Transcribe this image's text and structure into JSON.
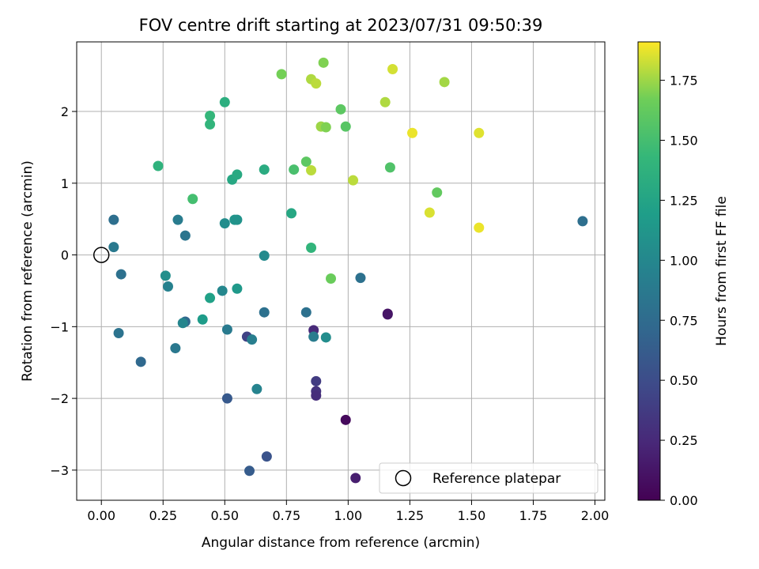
{
  "chart_data": {
    "type": "scatter",
    "title": "FOV centre drift starting at 2023/07/31 09:50:39",
    "xlabel": "Angular distance from reference (arcmin)",
    "ylabel": "Rotation from reference (arcmin)",
    "xlim": [
      -0.1,
      2.04
    ],
    "ylim": [
      -3.42,
      2.97
    ],
    "x_ticks": [
      0.0,
      0.25,
      0.5,
      0.75,
      1.0,
      1.25,
      1.5,
      1.75,
      2.0
    ],
    "x_tick_labels": [
      "0.00",
      "0.25",
      "0.50",
      "0.75",
      "1.00",
      "1.25",
      "1.50",
      "1.75",
      "2.00"
    ],
    "y_ticks": [
      -3,
      -2,
      -1,
      0,
      1,
      2
    ],
    "y_tick_labels": [
      "−3",
      "−2",
      "−1",
      "0",
      "1",
      "2"
    ],
    "grid": true,
    "legend": {
      "position": "lower-right",
      "entries": [
        "Reference platepar"
      ]
    },
    "reference_point": {
      "x": 0,
      "y": 0
    },
    "colorbar": {
      "label": "Hours from first FF file",
      "colormap": "viridis",
      "range": [
        0,
        1.91
      ],
      "ticks": [
        0.0,
        0.25,
        0.5,
        0.75,
        1.0,
        1.25,
        1.5,
        1.75
      ],
      "tick_labels": [
        "0.00",
        "0.25",
        "0.50",
        "0.75",
        "1.00",
        "1.25",
        "1.50",
        "1.75"
      ]
    },
    "points": [
      {
        "x": 0.05,
        "y": 0.49,
        "c": 0.78
      },
      {
        "x": 0.05,
        "y": 0.11,
        "c": 0.87
      },
      {
        "x": 0.08,
        "y": -0.27,
        "c": 0.8
      },
      {
        "x": 0.07,
        "y": -1.09,
        "c": 0.82
      },
      {
        "x": 0.16,
        "y": -1.49,
        "c": 0.73
      },
      {
        "x": 0.23,
        "y": 1.24,
        "c": 1.38
      },
      {
        "x": 0.26,
        "y": -0.29,
        "c": 1.07
      },
      {
        "x": 0.27,
        "y": -0.44,
        "c": 0.95
      },
      {
        "x": 0.31,
        "y": 0.49,
        "c": 0.9
      },
      {
        "x": 0.34,
        "y": 0.27,
        "c": 0.84
      },
      {
        "x": 0.34,
        "y": -0.93,
        "c": 0.72
      },
      {
        "x": 0.33,
        "y": -0.95,
        "c": 0.98
      },
      {
        "x": 0.3,
        "y": -1.3,
        "c": 0.86
      },
      {
        "x": 0.37,
        "y": 0.78,
        "c": 1.5
      },
      {
        "x": 0.41,
        "y": -0.9,
        "c": 1.18
      },
      {
        "x": 0.44,
        "y": 1.94,
        "c": 1.42
      },
      {
        "x": 0.44,
        "y": 1.82,
        "c": 1.4
      },
      {
        "x": 0.44,
        "y": -0.6,
        "c": 1.22
      },
      {
        "x": 0.49,
        "y": -0.5,
        "c": 1.0
      },
      {
        "x": 0.5,
        "y": 2.13,
        "c": 1.35
      },
      {
        "x": 0.5,
        "y": 0.44,
        "c": 1.05
      },
      {
        "x": 0.51,
        "y": -1.04,
        "c": 0.88
      },
      {
        "x": 0.51,
        "y": -2.0,
        "c": 0.6
      },
      {
        "x": 0.53,
        "y": 1.05,
        "c": 1.28
      },
      {
        "x": 0.55,
        "y": 1.12,
        "c": 1.3
      },
      {
        "x": 0.54,
        "y": 0.49,
        "c": 1.12
      },
      {
        "x": 0.55,
        "y": 0.49,
        "c": 1.1
      },
      {
        "x": 0.55,
        "y": -0.47,
        "c": 1.15
      },
      {
        "x": 0.59,
        "y": -1.14,
        "c": 0.42
      },
      {
        "x": 0.61,
        "y": -1.18,
        "c": 0.92
      },
      {
        "x": 0.6,
        "y": -3.01,
        "c": 0.62
      },
      {
        "x": 0.63,
        "y": -1.87,
        "c": 0.96
      },
      {
        "x": 0.66,
        "y": 1.19,
        "c": 1.32
      },
      {
        "x": 0.66,
        "y": -0.01,
        "c": 1.02
      },
      {
        "x": 0.66,
        "y": -0.8,
        "c": 0.8
      },
      {
        "x": 0.67,
        "y": -2.81,
        "c": 0.55
      },
      {
        "x": 0.73,
        "y": 2.52,
        "c": 1.68
      },
      {
        "x": 0.77,
        "y": 0.58,
        "c": 1.28
      },
      {
        "x": 0.78,
        "y": 1.19,
        "c": 1.52
      },
      {
        "x": 0.83,
        "y": 1.3,
        "c": 1.6
      },
      {
        "x": 0.83,
        "y": -0.8,
        "c": 0.8
      },
      {
        "x": 0.85,
        "y": 2.45,
        "c": 1.78
      },
      {
        "x": 0.85,
        "y": 1.18,
        "c": 1.8
      },
      {
        "x": 0.85,
        "y": 0.1,
        "c": 1.4
      },
      {
        "x": 0.86,
        "y": -1.05,
        "c": 0.25
      },
      {
        "x": 0.86,
        "y": -1.14,
        "c": 0.9
      },
      {
        "x": 0.87,
        "y": 2.39,
        "c": 1.8
      },
      {
        "x": 0.89,
        "y": 1.79,
        "c": 1.75
      },
      {
        "x": 0.91,
        "y": 1.78,
        "c": 1.7
      },
      {
        "x": 0.87,
        "y": -1.76,
        "c": 0.38
      },
      {
        "x": 0.87,
        "y": -1.9,
        "c": 0.32
      },
      {
        "x": 0.87,
        "y": -1.96,
        "c": 0.28
      },
      {
        "x": 0.9,
        "y": 2.68,
        "c": 1.7
      },
      {
        "x": 0.91,
        "y": -1.15,
        "c": 1.05
      },
      {
        "x": 0.93,
        "y": -0.33,
        "c": 1.65
      },
      {
        "x": 0.97,
        "y": 2.03,
        "c": 1.6
      },
      {
        "x": 0.99,
        "y": 1.79,
        "c": 1.58
      },
      {
        "x": 0.99,
        "y": -2.3,
        "c": 0.05
      },
      {
        "x": 1.02,
        "y": 1.04,
        "c": 1.8
      },
      {
        "x": 1.03,
        "y": -3.11,
        "c": 0.18
      },
      {
        "x": 1.05,
        "y": -0.32,
        "c": 0.8
      },
      {
        "x": 1.15,
        "y": 2.13,
        "c": 1.78
      },
      {
        "x": 1.16,
        "y": -0.82,
        "c": 0.1
      },
      {
        "x": 1.16,
        "y": -0.83,
        "c": 0.12
      },
      {
        "x": 1.17,
        "y": 1.22,
        "c": 1.55
      },
      {
        "x": 1.18,
        "y": 2.59,
        "c": 1.84
      },
      {
        "x": 1.26,
        "y": 1.7,
        "c": 1.88
      },
      {
        "x": 1.33,
        "y": 0.59,
        "c": 1.85
      },
      {
        "x": 1.36,
        "y": 0.87,
        "c": 1.62
      },
      {
        "x": 1.39,
        "y": 2.41,
        "c": 1.76
      },
      {
        "x": 1.53,
        "y": 1.7,
        "c": 1.86
      },
      {
        "x": 1.53,
        "y": 0.38,
        "c": 1.88
      },
      {
        "x": 1.95,
        "y": 0.47,
        "c": 0.78
      }
    ]
  }
}
